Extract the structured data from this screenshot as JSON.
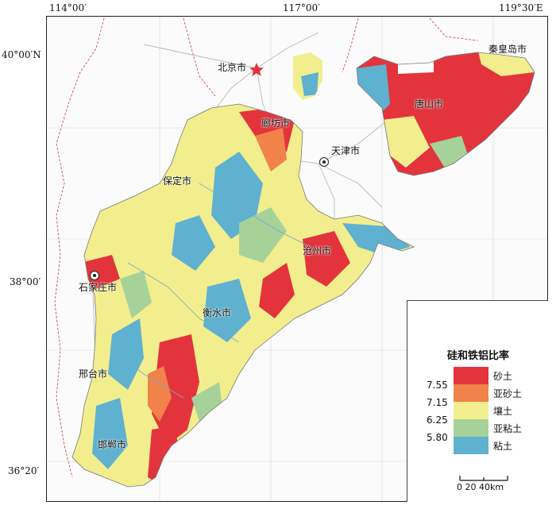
{
  "map": {
    "coords": {
      "top_left": "114°00′",
      "top_mid": "117°00′",
      "top_right": "119°30′E",
      "lat_top": "40°00′N",
      "lat_mid": "38°00′",
      "lat_bottom": "36°20′"
    },
    "cities": [
      {
        "id": "beijing",
        "label": "北京市",
        "marker": "star-icon"
      },
      {
        "id": "tianjin",
        "label": "天津市",
        "marker": "capital-icon"
      },
      {
        "id": "shijiazhuang",
        "label": "石家庄市",
        "marker": "capital-icon"
      },
      {
        "id": "qinhuangdao",
        "label": "秦皇岛市"
      },
      {
        "id": "tangshan",
        "label": "唐山市"
      },
      {
        "id": "langfang",
        "label": "廊坊市"
      },
      {
        "id": "baoding",
        "label": "保定市"
      },
      {
        "id": "cangzhou",
        "label": "沧州市"
      },
      {
        "id": "hengshui",
        "label": "衡水市"
      },
      {
        "id": "xingtai",
        "label": "邢台市"
      },
      {
        "id": "handan",
        "label": "邯郸市"
      }
    ]
  },
  "legend": {
    "title": "硅和铁铝比率",
    "classes": [
      {
        "label": "砂土",
        "color": "#e3343d"
      },
      {
        "label": "亚砂土",
        "color": "#f0824a"
      },
      {
        "label": "壤土",
        "color": "#f2ee8e"
      },
      {
        "label": "亚粘土",
        "color": "#a6d29a"
      },
      {
        "label": "粘土",
        "color": "#5fb1d0"
      }
    ],
    "thresholds": [
      "7.55",
      "7.15",
      "6.25",
      "5.80"
    ],
    "scale_label": "0  20  40km",
    "scale_ticks_km": [
      0,
      20,
      40
    ]
  }
}
